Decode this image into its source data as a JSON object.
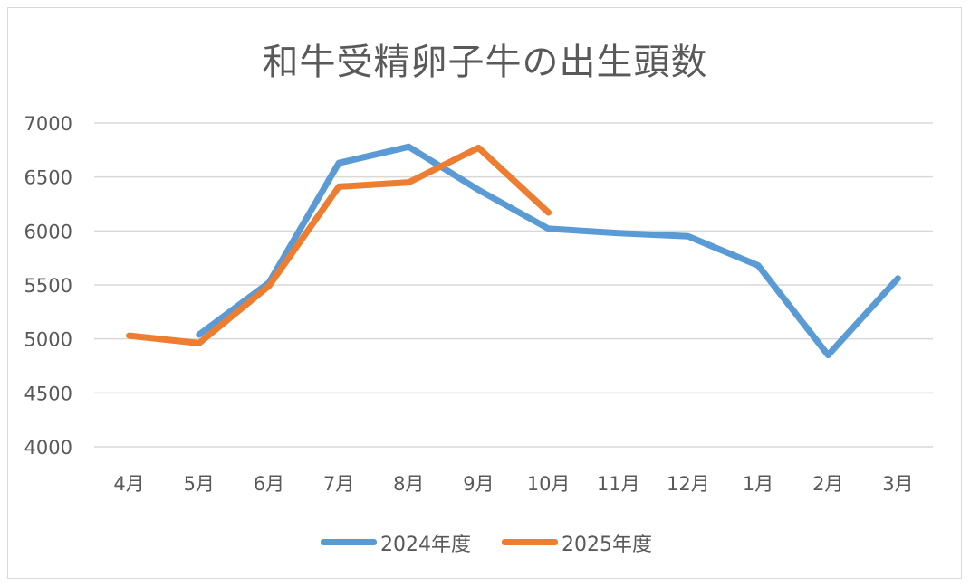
{
  "chart_data": {
    "type": "line",
    "title": "和牛受精卵子牛の出生頭数",
    "categories": [
      "4月",
      "5月",
      "6月",
      "7月",
      "8月",
      "9月",
      "10月",
      "11月",
      "12月",
      "1月",
      "2月",
      "3月"
    ],
    "ylim": [
      4000,
      7000
    ],
    "yticks": [
      4000,
      4500,
      5000,
      5500,
      6000,
      6500,
      7000
    ],
    "grid": true,
    "legend_position": "bottom",
    "series": [
      {
        "name": "2024年度",
        "color": "#5B9BD5",
        "values": [
          null,
          5040,
          5520,
          6630,
          6780,
          6380,
          6020,
          5980,
          5950,
          5680,
          4850,
          5560
        ]
      },
      {
        "name": "2025年度",
        "color": "#ED7D31",
        "values": [
          5030,
          4960,
          5490,
          6410,
          6450,
          6770,
          6170,
          null,
          null,
          null,
          null,
          null
        ]
      }
    ]
  }
}
